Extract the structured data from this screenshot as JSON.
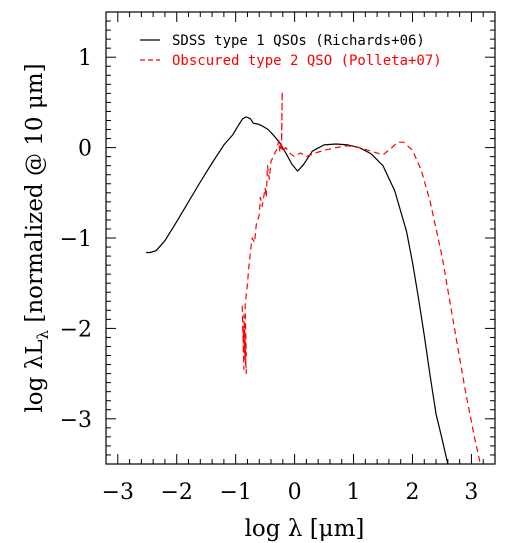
{
  "chart_data": {
    "type": "line",
    "xlabel": "log λ [μm]",
    "ylabel": "log λL_λ [normalized @ 10 μm]",
    "xlim": [
      -3.2,
      3.4
    ],
    "ylim": [
      -3.5,
      1.5
    ],
    "x_ticks": [
      {
        "value": -3,
        "label": "−3"
      },
      {
        "value": -2,
        "label": "−2"
      },
      {
        "value": -1,
        "label": "−1"
      },
      {
        "value": 0,
        "label": "0"
      },
      {
        "value": 1,
        "label": "1"
      },
      {
        "value": 2,
        "label": "2"
      },
      {
        "value": 3,
        "label": "3"
      }
    ],
    "y_ticks": [
      {
        "value": 1,
        "label": "1"
      },
      {
        "value": 0,
        "label": "0"
      },
      {
        "value": -1,
        "label": "−1"
      },
      {
        "value": -2,
        "label": "−2"
      },
      {
        "value": -3,
        "label": "−3"
      }
    ],
    "legend_position": "top-right",
    "series": [
      {
        "name": "SDSS type 1 QSOs (Richards+06)",
        "color": "#000000",
        "dash": "solid",
        "x": [
          -2.52,
          -2.45,
          -2.35,
          -2.2,
          -2.0,
          -1.8,
          -1.6,
          -1.4,
          -1.2,
          -1.05,
          -0.95,
          -0.88,
          -0.82,
          -0.75,
          -0.7,
          -0.62,
          -0.55,
          -0.45,
          -0.35,
          -0.25,
          -0.15,
          -0.05,
          0.05,
          0.15,
          0.3,
          0.5,
          0.7,
          0.9,
          1.1,
          1.3,
          1.5,
          1.7,
          1.9,
          2.0,
          2.1,
          2.2,
          2.3,
          2.4,
          2.5,
          2.6
        ],
        "y": [
          -1.16,
          -1.16,
          -1.14,
          -1.03,
          -0.82,
          -0.6,
          -0.38,
          -0.17,
          0.03,
          0.14,
          0.25,
          0.32,
          0.34,
          0.32,
          0.27,
          0.26,
          0.24,
          0.2,
          0.13,
          0.05,
          -0.06,
          -0.18,
          -0.26,
          -0.19,
          -0.04,
          0.03,
          0.04,
          0.03,
          0.0,
          -0.07,
          -0.2,
          -0.48,
          -0.93,
          -1.27,
          -1.66,
          -2.08,
          -2.53,
          -2.95,
          -3.22,
          -3.5
        ]
      },
      {
        "name": "Obscured type 2 QSO (Polleta+07)",
        "color": "#ff0000",
        "dash": "dashed",
        "x": [
          -0.89,
          -0.86,
          -0.88,
          -0.84,
          -0.87,
          -0.83,
          -0.86,
          -0.82,
          -0.85,
          -0.82,
          -0.84,
          -0.8,
          -0.78,
          -0.75,
          -0.72,
          -0.68,
          -0.65,
          -0.6,
          -0.58,
          -0.55,
          -0.5,
          -0.48,
          -0.46,
          -0.43,
          -0.4,
          -0.36,
          -0.33,
          -0.3,
          -0.27,
          -0.25,
          -0.22,
          -0.21,
          -0.22,
          -0.2,
          -0.18,
          -0.15,
          -0.1,
          -0.05,
          0.0,
          0.1,
          0.2,
          0.35,
          0.5,
          0.7,
          0.9,
          1.1,
          1.3,
          1.5,
          1.65,
          1.75,
          1.85,
          2.0,
          2.15,
          2.3,
          2.5,
          2.7,
          2.9,
          3.05,
          3.15
        ],
        "y": [
          -1.75,
          -2.45,
          -1.9,
          -2.35,
          -2.05,
          -2.4,
          -1.85,
          -2.5,
          -2.0,
          -2.3,
          -1.75,
          -1.5,
          -1.35,
          -1.15,
          -1.0,
          -1.05,
          -0.85,
          -0.75,
          -0.55,
          -0.65,
          -0.45,
          -0.55,
          -0.2,
          -0.35,
          -0.15,
          -0.1,
          -0.05,
          -0.02,
          0.08,
          -0.05,
          0.1,
          0.62,
          0.0,
          -0.05,
          -0.02,
          0.0,
          -0.05,
          -0.08,
          -0.1,
          -0.06,
          -0.1,
          -0.06,
          -0.03,
          0.0,
          0.02,
          0.0,
          -0.04,
          -0.08,
          0.0,
          0.06,
          0.06,
          -0.03,
          -0.25,
          -0.6,
          -1.2,
          -1.95,
          -2.7,
          -3.2,
          -3.5
        ]
      }
    ]
  }
}
